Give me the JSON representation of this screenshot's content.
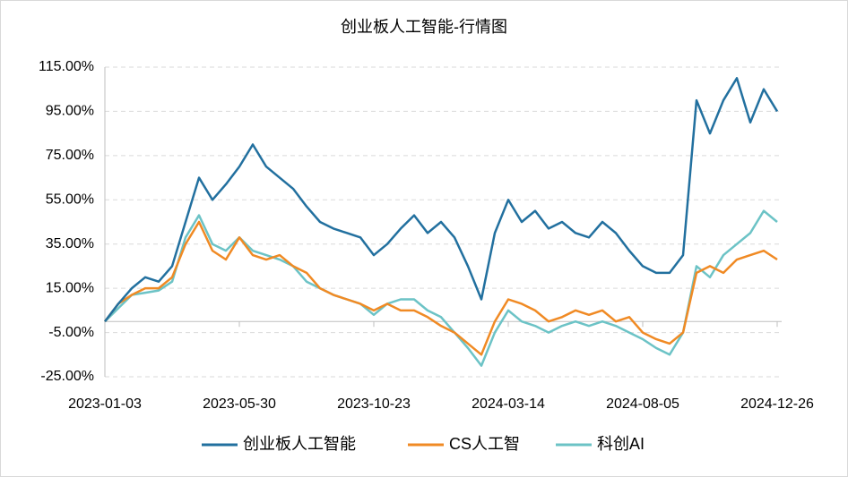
{
  "chart_data": {
    "type": "line",
    "title": "创业板人工智能-行情图",
    "x": [
      "2023-01-03",
      "2023-01-17",
      "2023-02-01",
      "2023-02-15",
      "2023-03-01",
      "2023-03-15",
      "2023-03-29",
      "2023-04-13",
      "2023-04-27",
      "2023-05-15",
      "2023-05-30",
      "2023-06-13",
      "2023-06-28",
      "2023-07-12",
      "2023-07-26",
      "2023-08-09",
      "2023-08-23",
      "2023-09-06",
      "2023-09-20",
      "2023-10-09",
      "2023-10-23",
      "2023-11-06",
      "2023-11-20",
      "2023-12-04",
      "2023-12-18",
      "2024-01-02",
      "2024-01-16",
      "2024-01-30",
      "2024-02-20",
      "2024-03-01",
      "2024-03-14",
      "2024-03-28",
      "2024-04-12",
      "2024-04-26",
      "2024-05-14",
      "2024-05-28",
      "2024-06-12",
      "2024-06-26",
      "2024-07-10",
      "2024-07-24",
      "2024-08-05",
      "2024-08-19",
      "2024-09-02",
      "2024-09-18",
      "2024-09-30",
      "2024-10-16",
      "2024-10-30",
      "2024-11-13",
      "2024-11-27",
      "2024-12-11",
      "2024-12-26"
    ],
    "xticks": [
      "2023-01-03",
      "2023-05-30",
      "2023-10-23",
      "2024-03-14",
      "2024-08-05",
      "2024-12-26"
    ],
    "series": [
      {
        "name": "创业板人工智能",
        "color": "#22709f",
        "values": [
          0,
          8,
          15,
          20,
          18,
          25,
          45,
          65,
          55,
          62,
          70,
          80,
          70,
          65,
          60,
          52,
          45,
          42,
          40,
          38,
          30,
          35,
          42,
          48,
          40,
          45,
          38,
          25,
          10,
          40,
          55,
          45,
          50,
          42,
          45,
          40,
          38,
          45,
          40,
          32,
          25,
          22,
          22,
          30,
          100,
          85,
          100,
          110,
          90,
          105,
          95
        ]
      },
      {
        "name": "CS人工智",
        "color": "#f08a24",
        "values": [
          0,
          8,
          12,
          15,
          15,
          20,
          35,
          45,
          32,
          28,
          38,
          30,
          28,
          30,
          25,
          22,
          15,
          12,
          10,
          8,
          5,
          8,
          5,
          5,
          2,
          -2,
          -5,
          -10,
          -15,
          0,
          10,
          8,
          5,
          0,
          2,
          5,
          3,
          5,
          0,
          2,
          -5,
          -8,
          -10,
          -5,
          22,
          25,
          22,
          28,
          30,
          32,
          28
        ]
      },
      {
        "name": "科创AI",
        "color": "#6cc3c6",
        "values": [
          0,
          6,
          12,
          13,
          14,
          18,
          38,
          48,
          35,
          32,
          38,
          32,
          30,
          28,
          25,
          18,
          15,
          12,
          10,
          8,
          3,
          8,
          10,
          10,
          5,
          2,
          -5,
          -12,
          -20,
          -5,
          5,
          0,
          -2,
          -5,
          -2,
          0,
          -2,
          0,
          -2,
          -5,
          -8,
          -12,
          -15,
          -5,
          25,
          20,
          30,
          35,
          40,
          50,
          45
        ]
      }
    ],
    "ylim": [
      -25,
      115
    ],
    "yticks": [
      {
        "value": -25,
        "label": "-25.00%"
      },
      {
        "value": -5,
        "label": "-5.00%"
      },
      {
        "value": 15,
        "label": "15.00%"
      },
      {
        "value": 35,
        "label": "35.00%"
      },
      {
        "value": 55,
        "label": "55.00%"
      },
      {
        "value": 75,
        "label": "75.00%"
      },
      {
        "value": 95,
        "label": "95.00%"
      },
      {
        "value": 115,
        "label": "115.00%"
      }
    ],
    "grid": true
  }
}
